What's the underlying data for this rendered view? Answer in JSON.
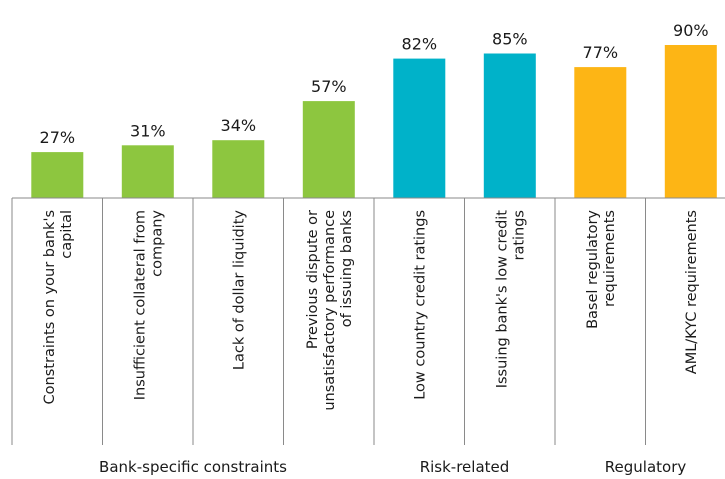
{
  "chart_data": {
    "type": "bar",
    "categories": [
      [
        "Constraints on your bank's",
        "capital"
      ],
      [
        "Insufficient collateral from",
        "company"
      ],
      [
        "Lack of dollar liquidity"
      ],
      [
        "Previous dispute or",
        "unsatisfactory performance",
        "of issuing banks"
      ],
      [
        "Low country credit ratings"
      ],
      [
        "Issuing bank's low credit",
        "ratings"
      ],
      [
        "Basel regulatory",
        "requirements"
      ],
      [
        "AML/KYC requirements"
      ]
    ],
    "values": [
      27,
      31,
      34,
      57,
      82,
      85,
      77,
      90
    ],
    "value_labels": [
      "27%",
      "31%",
      "34%",
      "57%",
      "82%",
      "85%",
      "77%",
      "90%"
    ],
    "groups": [
      {
        "name": "Bank-specific constraints",
        "count": 4,
        "color": "#8DC63F"
      },
      {
        "name": "Risk-related",
        "count": 2,
        "color": "#00B2C9"
      },
      {
        "name": "Regulatory",
        "count": 2,
        "color": "#FDB515"
      }
    ],
    "ylim": [
      0,
      100
    ],
    "grid": false,
    "legend": "none"
  }
}
